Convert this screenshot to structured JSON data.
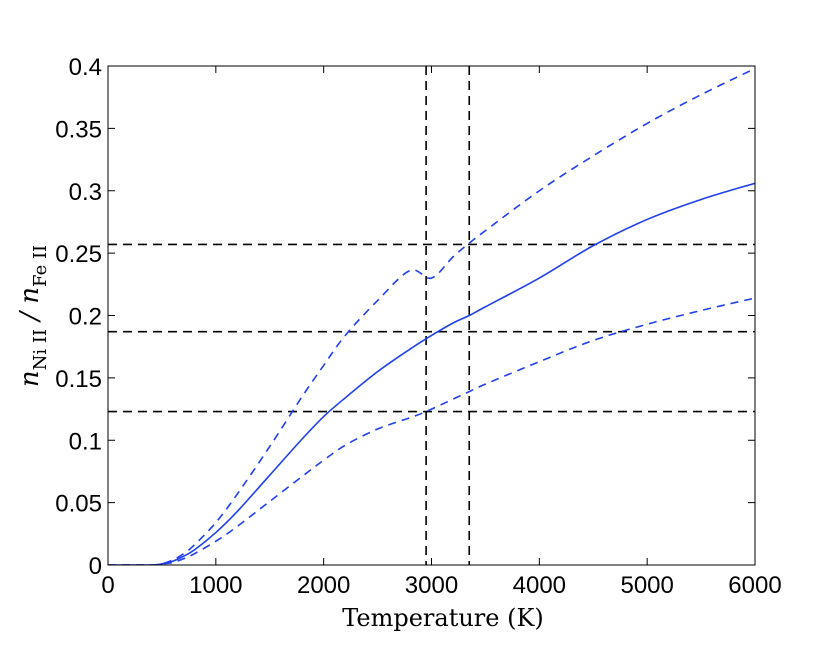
{
  "chart_data": {
    "type": "line",
    "xlabel": "Temperature (K)",
    "ylabel": {
      "numerator_symbol": "n",
      "numerator_subscript": "Ni II",
      "separator": " / ",
      "denominator_symbol": "n",
      "denominator_subscript": "Fe II"
    },
    "xlim": [
      0,
      6000
    ],
    "ylim": [
      0,
      0.4
    ],
    "xticks": [
      0,
      1000,
      2000,
      3000,
      4000,
      5000,
      6000
    ],
    "xtick_labels": [
      "0",
      "1000",
      "2000",
      "3000",
      "4000",
      "5000",
      "6000"
    ],
    "yticks": [
      0,
      0.05,
      0.1,
      0.15,
      0.2,
      0.25,
      0.3,
      0.35,
      0.4
    ],
    "ytick_labels": [
      "0",
      "0.05",
      "0.1",
      "0.15",
      "0.2",
      "0.25",
      "0.3",
      "0.35",
      "0.4"
    ],
    "grid": false,
    "series": [
      {
        "style": "solid",
        "color": "#1f3ff0",
        "x": [
          0,
          400,
          500,
          600,
          700,
          800,
          1000,
          1200,
          1500,
          1800,
          2000,
          2200,
          2500,
          2800,
          3000,
          3200,
          3350,
          3500,
          4000,
          4500,
          5000,
          5500,
          6000
        ],
        "y": [
          0,
          0,
          0.001,
          0.003,
          0.007,
          0.012,
          0.026,
          0.043,
          0.072,
          0.101,
          0.119,
          0.134,
          0.155,
          0.173,
          0.184,
          0.194,
          0.2,
          0.207,
          0.23,
          0.256,
          0.277,
          0.293,
          0.306
        ]
      },
      {
        "style": "dashed",
        "color": "#1f3ff0",
        "x": [
          0,
          400,
          500,
          600,
          700,
          800,
          1000,
          1200,
          1500,
          1800,
          2000,
          2200,
          2500,
          2800,
          3000,
          3200,
          3350,
          3500,
          4000,
          4500,
          5000,
          5500,
          6000
        ],
        "y": [
          0,
          0,
          0.001,
          0.004,
          0.009,
          0.016,
          0.034,
          0.057,
          0.095,
          0.135,
          0.16,
          0.184,
          0.212,
          0.236,
          0.23,
          0.247,
          0.258,
          0.268,
          0.3,
          0.328,
          0.354,
          0.377,
          0.398
        ]
      },
      {
        "style": "dashed",
        "color": "#1f3ff0",
        "x": [
          0,
          400,
          500,
          600,
          700,
          800,
          1000,
          1200,
          1500,
          1800,
          2000,
          2200,
          2500,
          2800,
          2950,
          3200,
          3350,
          3500,
          4000,
          4500,
          5000,
          5500,
          6000
        ],
        "y": [
          0,
          0,
          0.001,
          0.002,
          0.005,
          0.009,
          0.019,
          0.031,
          0.051,
          0.071,
          0.084,
          0.096,
          0.109,
          0.118,
          0.123,
          0.133,
          0.139,
          0.145,
          0.163,
          0.18,
          0.193,
          0.204,
          0.214
        ]
      }
    ],
    "reference_lines": {
      "color": "#000000",
      "style": "dashed",
      "horizontal_y": [
        0.123,
        0.187,
        0.257
      ],
      "vertical_x": [
        2950,
        3350
      ]
    }
  }
}
